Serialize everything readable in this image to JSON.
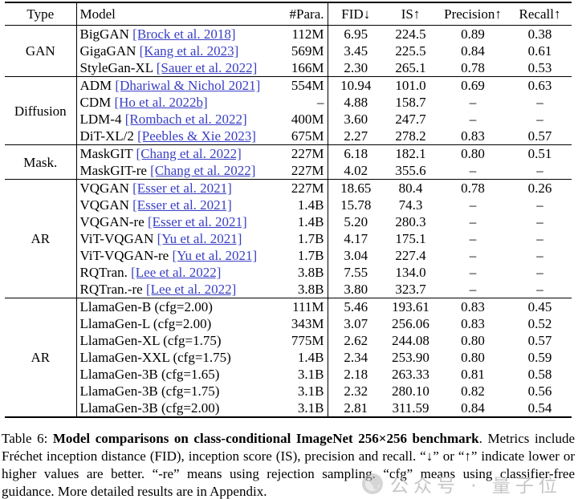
{
  "table": {
    "headers": {
      "type": "Type",
      "model": "Model",
      "params": "#Para.",
      "fid": "FID↓",
      "is": "IS↑",
      "precision": "Precision↑",
      "recall": "Recall↑"
    },
    "groups": [
      {
        "type": "GAN",
        "rows": [
          {
            "model": "BigGAN",
            "cite": "[Brock et al. 2018]",
            "params": "112M",
            "fid": "6.95",
            "is": "224.5",
            "precision": "0.89",
            "recall": "0.38"
          },
          {
            "model": "GigaGAN",
            "cite": "[Kang et al. 2023]",
            "params": "569M",
            "fid": "3.45",
            "is": "225.5",
            "precision": "0.84",
            "recall": "0.61"
          },
          {
            "model": "StyleGan-XL",
            "cite": "[Sauer et al. 2022]",
            "params": "166M",
            "fid": "2.30",
            "is": "265.1",
            "precision": "0.78",
            "recall": "0.53"
          }
        ]
      },
      {
        "type": "Diffusion",
        "rows": [
          {
            "model": "ADM",
            "cite": "[Dhariwal & Nichol 2021]",
            "params": "554M",
            "fid": "10.94",
            "is": "101.0",
            "precision": "0.69",
            "recall": "0.63"
          },
          {
            "model": "CDM",
            "cite": "[Ho et al. 2022b]",
            "params": "–",
            "fid": "4.88",
            "is": "158.7",
            "precision": "–",
            "recall": "–"
          },
          {
            "model": "LDM-4",
            "cite": "[Rombach et al. 2022]",
            "params": "400M",
            "fid": "3.60",
            "is": "247.7",
            "precision": "–",
            "recall": "–"
          },
          {
            "model": "DiT-XL/2",
            "cite": "[Peebles & Xie 2023]",
            "params": "675M",
            "fid": "2.27",
            "is": "278.2",
            "precision": "0.83",
            "recall": "0.57"
          }
        ]
      },
      {
        "type": "Mask.",
        "rows": [
          {
            "model": "MaskGIT",
            "cite": "[Chang et al. 2022]",
            "params": "227M",
            "fid": "6.18",
            "is": "182.1",
            "precision": "0.80",
            "recall": "0.51"
          },
          {
            "model": "MaskGIT-re",
            "cite": "[Chang et al. 2022]",
            "params": "227M",
            "fid": "4.02",
            "is": "355.6",
            "precision": "–",
            "recall": "–"
          }
        ]
      },
      {
        "type": "AR",
        "rows": [
          {
            "model": "VQGAN",
            "cite": "[Esser et al. 2021]",
            "params": "227M",
            "fid": "18.65",
            "is": "80.4",
            "precision": "0.78",
            "recall": "0.26"
          },
          {
            "model": "VQGAN",
            "cite": "[Esser et al. 2021]",
            "params": "1.4B",
            "fid": "15.78",
            "is": "74.3",
            "precision": "–",
            "recall": "–"
          },
          {
            "model": "VQGAN-re",
            "cite": "[Esser et al. 2021]",
            "params": "1.4B",
            "fid": "5.20",
            "is": "280.3",
            "precision": "–",
            "recall": "–"
          },
          {
            "model": "ViT-VQGAN",
            "cite": "[Yu et al. 2021]",
            "params": "1.7B",
            "fid": "4.17",
            "is": "175.1",
            "precision": "–",
            "recall": "–"
          },
          {
            "model": "ViT-VQGAN-re",
            "cite": "[Yu et al. 2021]",
            "params": "1.7B",
            "fid": "3.04",
            "is": "227.4",
            "precision": "–",
            "recall": "–"
          },
          {
            "model": "RQTran.",
            "cite": "[Lee et al. 2022]",
            "params": "3.8B",
            "fid": "7.55",
            "is": "134.0",
            "precision": "–",
            "recall": "–"
          },
          {
            "model": "RQTran.-re",
            "cite": "[Lee et al. 2022]",
            "params": "3.8B",
            "fid": "3.80",
            "is": "323.7",
            "precision": "–",
            "recall": "–"
          }
        ]
      },
      {
        "type": "AR",
        "rows": [
          {
            "model": "LlamaGen-B (cfg=2.00)",
            "cite": "",
            "params": "111M",
            "fid": "5.46",
            "is": "193.61",
            "precision": "0.83",
            "recall": "0.45"
          },
          {
            "model": "LlamaGen-L (cfg=2.00)",
            "cite": "",
            "params": "343M",
            "fid": "3.07",
            "is": "256.06",
            "precision": "0.83",
            "recall": "0.52"
          },
          {
            "model": "LlamaGen-XL (cfg=1.75)",
            "cite": "",
            "params": "775M",
            "fid": "2.62",
            "is": "244.08",
            "precision": "0.80",
            "recall": "0.57"
          },
          {
            "model": "LlamaGen-XXL (cfg=1.75)",
            "cite": "",
            "params": "1.4B",
            "fid": "2.34",
            "is": "253.90",
            "precision": "0.80",
            "recall": "0.59"
          },
          {
            "model": "LlamaGen-3B (cfg=1.65)",
            "cite": "",
            "params": "3.1B",
            "fid": "2.18",
            "is": "263.33",
            "precision": "0.81",
            "recall": "0.58"
          },
          {
            "model": "LlamaGen-3B (cfg=1.75)",
            "cite": "",
            "params": "3.1B",
            "fid": "2.32",
            "is": "280.10",
            "precision": "0.82",
            "recall": "0.56"
          },
          {
            "model": "LlamaGen-3B (cfg=2.00)",
            "cite": "",
            "params": "3.1B",
            "fid": "2.81",
            "is": "311.59",
            "precision": "0.84",
            "recall": "0.54"
          }
        ]
      }
    ]
  },
  "caption": {
    "prefix": "Table 6: ",
    "bold": "Model comparisons on class-conditional ImageNet 256×256 benchmark",
    "rest": ". Metrics include Fréchet inception distance (FID), inception score (IS), precision and recall. “↓” or “↑” indicate lower or higher values are better. “-re” means using rejection sampling. “cfg” means using classifier-free guidance. More detailed results are in Appendix."
  },
  "watermark": {
    "text": "公众号 · 量子位",
    "color": "#c6c6c6"
  },
  "colors": {
    "link_blue": "#3a40c4",
    "rule_black": "#000000",
    "background": "#ffffff",
    "watermark_gray": "#c6c6c6"
  }
}
